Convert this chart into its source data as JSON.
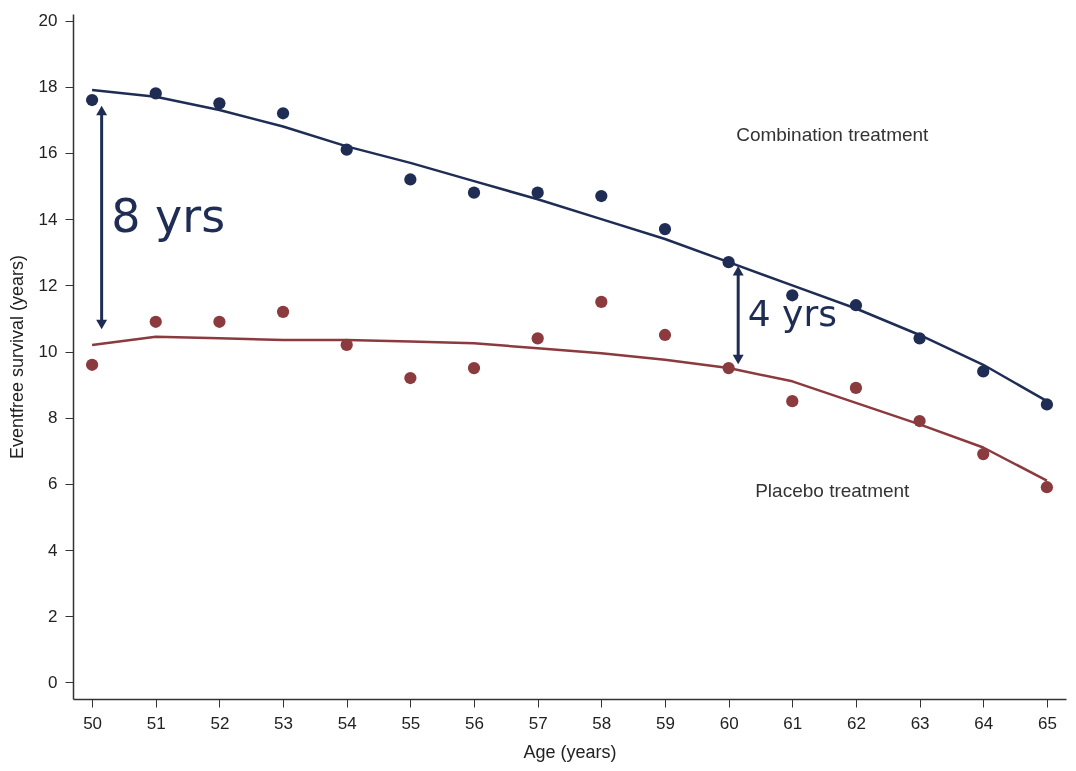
{
  "chart_data": {
    "type": "scatter",
    "xlabel": "Age (years)",
    "ylabel": "Eventfree survival (years)",
    "x": [
      50,
      51,
      52,
      53,
      54,
      55,
      56,
      57,
      58,
      59,
      60,
      61,
      62,
      63,
      64,
      65
    ],
    "series": [
      {
        "type": "line",
        "color": "#1f2d55",
        "marker": "none",
        "values": [
          17.9,
          17.7,
          17.3,
          16.8,
          16.2,
          15.7,
          15.15,
          14.6,
          14.0,
          13.4,
          12.7,
          12.0,
          11.3,
          10.5,
          9.6,
          8.5
        ]
      },
      {
        "type": "line",
        "color": "#8b3a3e",
        "marker": "none",
        "values": [
          10.2,
          10.45,
          10.4,
          10.35,
          10.35,
          10.3,
          10.25,
          10.1,
          9.95,
          9.75,
          9.5,
          9.1,
          8.45,
          7.8,
          7.1,
          6.1
        ]
      },
      {
        "color": "#1f2d55",
        "values": [
          17.6,
          17.8,
          17.5,
          17.2,
          16.1,
          15.2,
          14.8,
          14.8,
          14.7,
          13.7,
          12.7,
          11.7,
          11.4,
          10.4,
          9.4,
          8.4
        ]
      },
      {
        "color": "#8b3a3e",
        "values": [
          9.6,
          10.9,
          10.9,
          11.2,
          10.2,
          9.2,
          9.5,
          10.4,
          11.5,
          10.5,
          9.5,
          8.5,
          8.9,
          7.9,
          6.9,
          5.9
        ]
      }
    ],
    "annotations": [
      "Combination treatment",
      "Placebo treatment",
      "8 yrs",
      "4 yrs"
    ],
    "xlim": [
      49.7,
      65.3
    ],
    "xticks": [
      50,
      51,
      52,
      53,
      54,
      55,
      56,
      57,
      58,
      59,
      60,
      61,
      62,
      63,
      64,
      65
    ],
    "ylim": [
      -0.5,
      20.2
    ],
    "yticks": [
      0,
      2,
      4,
      6,
      8,
      10,
      12,
      14,
      16,
      18,
      20
    ],
    "grid": false,
    "marker": "circle"
  }
}
